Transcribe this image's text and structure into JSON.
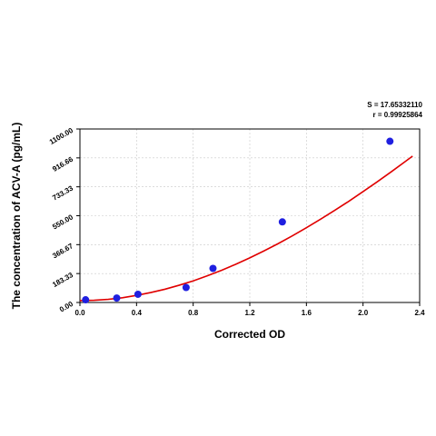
{
  "stats": {
    "s_label": "S = 17.65332110",
    "r_label": "r = 0.99925864"
  },
  "chart_data": {
    "type": "scatter",
    "xlabel": "Corrected OD",
    "ylabel": "The concentration of ACV-A (pg/mL)",
    "xlim": [
      0,
      2.4
    ],
    "ylim": [
      0,
      1100
    ],
    "x_ticks": [
      "0.0",
      "0.4",
      "0.8",
      "1.2",
      "1.6",
      "2.0",
      "2.4"
    ],
    "y_ticks": [
      "0.00",
      "183.33",
      "366.67",
      "550.00",
      "733.33",
      "916.66",
      "1100.00"
    ],
    "grid": true,
    "series": [
      {
        "x": [
          0.04,
          0.26,
          0.41,
          0.75,
          0.94,
          1.43,
          2.19
        ],
        "y": [
          17,
          28,
          52,
          95,
          216,
          511,
          1022
        ],
        "color": "#1f1fe0"
      }
    ],
    "fit_curve": {
      "color": "#e00000",
      "x": [
        0,
        0.1,
        0.2,
        0.3,
        0.4,
        0.5,
        0.6,
        0.7,
        0.8,
        0.9,
        1.0,
        1.1,
        1.2,
        1.3,
        1.4,
        1.5,
        1.6,
        1.7,
        1.8,
        1.9,
        2.0,
        2.1,
        2.2,
        2.3,
        2.35
      ],
      "y": [
        12,
        14,
        20,
        30,
        45,
        63,
        84,
        109,
        137,
        169,
        204,
        242,
        283,
        327,
        373,
        422,
        474,
        528,
        584,
        642,
        703,
        765,
        829,
        895,
        928
      ]
    }
  }
}
